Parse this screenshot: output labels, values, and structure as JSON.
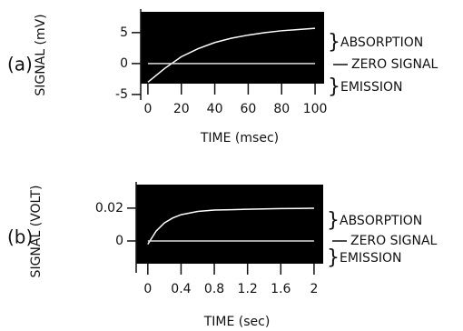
{
  "chart_data": [
    {
      "type": "line",
      "panel_label": "(a)",
      "ylabel": "SIGNAL (mV)",
      "xlabel": "TIME (msec)",
      "x": [
        0,
        10,
        20,
        30,
        40,
        50,
        60,
        70,
        80,
        90,
        100
      ],
      "series": [
        {
          "color": "#ffffff",
          "values": [
            -3,
            -0.8,
            1.1,
            2.4,
            3.4,
            4.1,
            4.6,
            5,
            5.3,
            5.5,
            5.7
          ]
        },
        {
          "color": "#dddddd",
          "values": [
            0,
            0,
            0,
            0,
            0,
            0,
            0,
            0,
            0,
            0,
            0
          ]
        }
      ],
      "xlim": [
        -4.3,
        105.4
      ],
      "ylim": [
        -5.9,
        8.8
      ],
      "xticks": [
        0,
        20,
        40,
        60,
        80,
        100
      ],
      "yticks": [
        5,
        0,
        -5
      ],
      "background": "#000000",
      "annotations": [
        "ABSORPTION",
        "ZERO SIGNAL",
        "EMISSION"
      ]
    },
    {
      "type": "line",
      "panel_label": "(b)",
      "ylabel": "SIGNAL (VOLT)",
      "xlabel": "TIME (sec)",
      "x": [
        0,
        0.1,
        0.2,
        0.3,
        0.4,
        0.6,
        0.8,
        1.0,
        1.2,
        1.4,
        1.6,
        1.8,
        2.0
      ],
      "series": [
        {
          "color": "#ffffff",
          "values": [
            -0.002,
            0.006,
            0.011,
            0.014,
            0.016,
            0.018,
            0.0188,
            0.019,
            0.0193,
            0.0195,
            0.0197,
            0.0198,
            0.0199
          ]
        },
        {
          "color": "#dddddd",
          "values": [
            0,
            0,
            0,
            0,
            0,
            0,
            0,
            0,
            0,
            0,
            0,
            0,
            0
          ]
        }
      ],
      "xlim": [
        -0.14,
        2.11
      ],
      "ylim": [
        -0.0194,
        0.036
      ],
      "xticks": [
        0,
        0.4,
        0.8,
        1.2,
        1.6,
        2
      ],
      "yticks": [
        0.02,
        0
      ],
      "background": "#000000",
      "annotations": [
        "ABSORPTION",
        "ZERO SIGNAL",
        "EMISSION"
      ]
    }
  ]
}
